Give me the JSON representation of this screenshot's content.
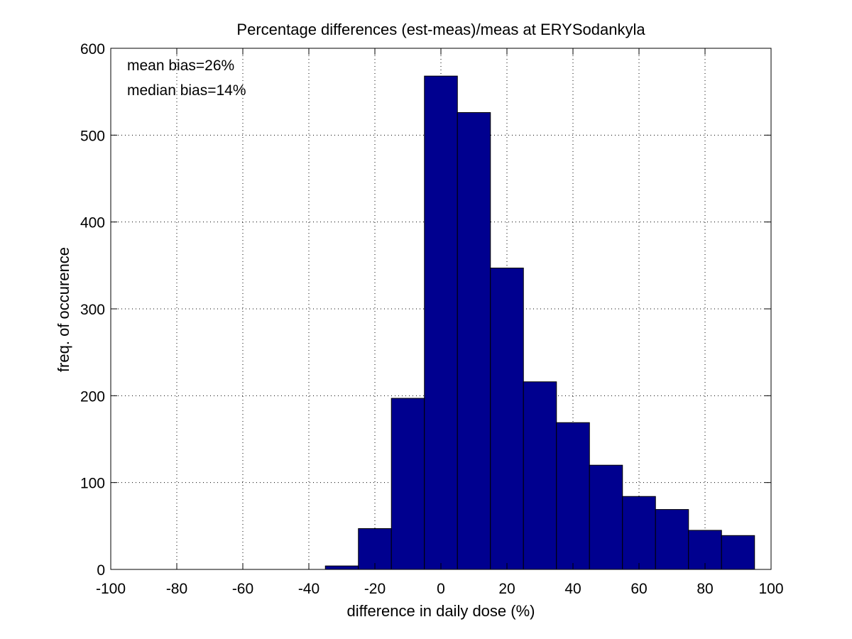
{
  "chart_data": {
    "type": "bar",
    "title": "Percentage differences (est-meas)/meas at ERYSodankyla",
    "xlabel": "difference in daily dose (%)",
    "ylabel": "freq. of occurence",
    "xlim": [
      -100,
      100
    ],
    "ylim": [
      0,
      600
    ],
    "xticks": [
      "-100",
      "-80",
      "-60",
      "-40",
      "-20",
      "0",
      "20",
      "40",
      "60",
      "80",
      "100"
    ],
    "yticks": [
      "0",
      "100",
      "200",
      "300",
      "400",
      "500",
      "600"
    ],
    "grid": true,
    "bin_width": 10,
    "bins": [
      {
        "center": -30,
        "count": 4
      },
      {
        "center": -20,
        "count": 47
      },
      {
        "center": -10,
        "count": 197
      },
      {
        "center": 0,
        "count": 568
      },
      {
        "center": 10,
        "count": 526
      },
      {
        "center": 20,
        "count": 347
      },
      {
        "center": 30,
        "count": 216
      },
      {
        "center": 40,
        "count": 169
      },
      {
        "center": 50,
        "count": 120
      },
      {
        "center": 60,
        "count": 84
      },
      {
        "center": 70,
        "count": 69
      },
      {
        "center": 80,
        "count": 45
      },
      {
        "center": 90,
        "count": 39
      }
    ],
    "annotations": [
      "mean bias=26%",
      "median bias=14%"
    ],
    "bar_color": "#00008f",
    "edge_color": "#000000"
  }
}
